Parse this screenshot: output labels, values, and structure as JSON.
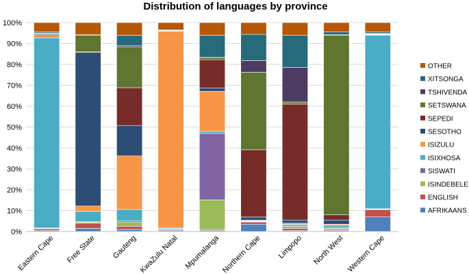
{
  "chart_data": {
    "type": "bar",
    "stacked": true,
    "percent": true,
    "title": "Distribution of languages by province",
    "xlabel": "",
    "ylabel": "",
    "ylim": [
      0,
      100
    ],
    "y_ticks": [
      "0%",
      "10%",
      "20%",
      "30%",
      "40%",
      "50%",
      "60%",
      "70%",
      "80%",
      "90%",
      "100%"
    ],
    "grid": true,
    "legend_position": "right",
    "categories": [
      "Eastern Cape",
      "Free State",
      "Gauteng",
      "KwaZulu Natal",
      "Mpumalanga",
      "Northern Cape",
      "Limpopo",
      "North West",
      "Western Cape"
    ],
    "series": [
      {
        "name": "AFRIKAANS",
        "color": "#4f81bd",
        "values": [
          0.5,
          1.5,
          1.0,
          0.5,
          0.5,
          3.5,
          0.5,
          0.5,
          7.0
        ]
      },
      {
        "name": "ENGLISH",
        "color": "#c0504d",
        "values": [
          0.8,
          2.5,
          1.5,
          0.5,
          0.5,
          1.0,
          1.0,
          0.5,
          3.5
        ]
      },
      {
        "name": "ISINDEBELE",
        "color": "#9bbb59",
        "values": [
          0.2,
          0.5,
          2.0,
          0.2,
          14.0,
          0.2,
          1.0,
          0.5,
          0.2
        ]
      },
      {
        "name": "SISWATI",
        "color": "#8064a2",
        "values": [
          0.2,
          0.2,
          0.5,
          0.2,
          31.5,
          0.2,
          0.5,
          0.5,
          0.2
        ]
      },
      {
        "name": "ISIXHOSA",
        "color": "#4bacc6",
        "values": [
          91.0,
          5.0,
          5.5,
          0.5,
          1.0,
          0.3,
          0.5,
          1.0,
          83.0
        ]
      },
      {
        "name": "ISIZULU",
        "color": "#f79646",
        "values": [
          1.5,
          2.5,
          25.5,
          94.0,
          19.0,
          0.2,
          0.5,
          0.5,
          0.3
        ]
      },
      {
        "name": "SESOTHO",
        "color": "#2c4d75",
        "values": [
          0.5,
          73.5,
          14.5,
          0.2,
          1.5,
          1.5,
          1.5,
          2.0,
          0.2
        ]
      },
      {
        "name": "SEPEDI",
        "color": "#772c2a",
        "values": [
          0.1,
          0.3,
          18.0,
          0.1,
          13.5,
          32.0,
          55.5,
          2.5,
          0.1
        ]
      },
      {
        "name": "SETSWANA",
        "color": "#5f7530",
        "values": [
          0.1,
          8.0,
          19.5,
          0.1,
          1.0,
          37.0,
          1.0,
          86.0,
          0.2
        ]
      },
      {
        "name": "TSHIVENDA",
        "color": "#4d3b62",
        "values": [
          0.1,
          0.1,
          0.5,
          0.1,
          0.1,
          5.5,
          16.5,
          0.2,
          0.1
        ]
      },
      {
        "name": "XITSONGA",
        "color": "#276a7c",
        "values": [
          0.5,
          0.1,
          5.0,
          0.1,
          10.5,
          12.5,
          15.5,
          1.3,
          0.7
        ]
      },
      {
        "name": "OTHER",
        "color": "#b65708",
        "values": [
          4.5,
          5.8,
          6.0,
          3.5,
          6.0,
          5.6,
          6.0,
          4.5,
          4.5
        ]
      }
    ]
  }
}
